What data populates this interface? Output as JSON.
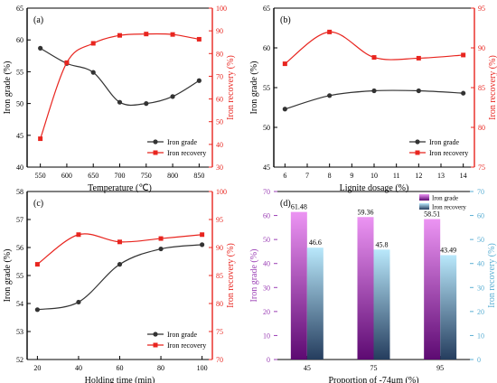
{
  "colors": {
    "grade": "#333333",
    "recovery": "#e8251f",
    "bar_grade_top": "#ec94f3",
    "bar_grade_bottom": "#5d0a72",
    "bar_rec_top": "#b9e8fb",
    "bar_rec_bottom": "#253d5e",
    "axis_left_d": "#9b3fb5",
    "axis_right_d": "#5aaed3"
  },
  "chart_data": [
    {
      "type": "line",
      "panel_label": "(a)",
      "xlabel": "Temperature (℃)",
      "ylabel_left": "Iron grade (%)",
      "ylabel_right": "Iron recovery (%)",
      "x": [
        550,
        600,
        650,
        700,
        750,
        800,
        850
      ],
      "xlim": [
        525,
        875
      ],
      "x_ticks": [
        "550",
        "600",
        "650",
        "700",
        "750",
        "800",
        "850"
      ],
      "ylim_left": [
        40,
        65
      ],
      "ticks_left": [
        "40",
        "45",
        "50",
        "55",
        "60",
        "65"
      ],
      "ylim_right": [
        30,
        100
      ],
      "ticks_right": [
        "30",
        "40",
        "50",
        "60",
        "70",
        "80",
        "90",
        "100"
      ],
      "series": [
        {
          "name": "Iron grade",
          "axis": "left",
          "values": [
            58.7,
            56.3,
            54.9,
            50.2,
            50.0,
            51.1,
            53.6
          ]
        },
        {
          "name": "Iron recovery",
          "axis": "right",
          "values": [
            42.5,
            76.0,
            84.5,
            88.0,
            88.6,
            88.4,
            86.3
          ]
        }
      ],
      "legend": "bottom-right"
    },
    {
      "type": "line",
      "panel_label": "(b)",
      "xlabel": "Lignite dosage (%)",
      "ylabel_left": "Iron grade (%)",
      "ylabel_right": "Iron recovery (%)",
      "x": [
        6,
        8,
        10,
        12,
        14
      ],
      "xlim": [
        5.5,
        14.5
      ],
      "x_ticks": [
        "6",
        "7",
        "8",
        "9",
        "10",
        "11",
        "12",
        "13",
        "14"
      ],
      "ylim_left": [
        45,
        65
      ],
      "ticks_left": [
        "45",
        "50",
        "55",
        "60",
        "65"
      ],
      "ylim_right": [
        75,
        95
      ],
      "ticks_right": [
        "75",
        "80",
        "85",
        "90",
        "95"
      ],
      "series": [
        {
          "name": "Iron grade",
          "axis": "left",
          "values": [
            52.3,
            54.0,
            54.6,
            54.6,
            54.3
          ]
        },
        {
          "name": "Iron recovery",
          "axis": "right",
          "values": [
            88.0,
            92.0,
            88.8,
            88.7,
            89.1
          ]
        }
      ],
      "legend": "bottom-right"
    },
    {
      "type": "line",
      "panel_label": "(c)",
      "xlabel": "Holding time (min)",
      "ylabel_left": "Iron grade (%)",
      "ylabel_right": "Iron recovery (%)",
      "x": [
        20,
        40,
        60,
        80,
        100
      ],
      "xlim": [
        15,
        105
      ],
      "x_ticks": [
        "20",
        "40",
        "60",
        "80",
        "100"
      ],
      "ylim_left": [
        52,
        58
      ],
      "ticks_left": [
        "52",
        "53",
        "54",
        "55",
        "56",
        "57",
        "58"
      ],
      "ylim_right": [
        70,
        100
      ],
      "ticks_right": [
        "70",
        "75",
        "80",
        "85",
        "90",
        "95",
        "100"
      ],
      "series": [
        {
          "name": "Iron grade",
          "axis": "left",
          "values": [
            53.78,
            54.05,
            55.4,
            55.95,
            56.1
          ]
        },
        {
          "name": "Iron recovery",
          "axis": "right",
          "values": [
            87.0,
            92.3,
            91.0,
            91.6,
            92.3
          ]
        }
      ],
      "legend": "bottom-right"
    },
    {
      "type": "bar",
      "panel_label": "(d)",
      "xlabel": "Proportion of -74μm (%)",
      "ylabel_left": "Iron grade (%)",
      "ylabel_right": "Iron recovery (%)",
      "categories": [
        "45",
        "75",
        "95"
      ],
      "ylim_left": [
        0,
        70
      ],
      "ticks_left": [
        "0",
        "10",
        "20",
        "30",
        "40",
        "50",
        "60",
        "70"
      ],
      "ylim_right": [
        0,
        70
      ],
      "ticks_right": [
        "0",
        "10",
        "20",
        "30",
        "40",
        "50",
        "60",
        "70"
      ],
      "series": [
        {
          "name": "Iron grade",
          "values": [
            61.48,
            59.36,
            58.51
          ],
          "labels": [
            "61.48",
            "59.36",
            "58.51"
          ]
        },
        {
          "name": "Iron recovery",
          "values": [
            46.6,
            45.8,
            43.49
          ],
          "labels": [
            "46.6",
            "45.8",
            "43.49"
          ]
        }
      ],
      "legend": "top-right"
    }
  ]
}
